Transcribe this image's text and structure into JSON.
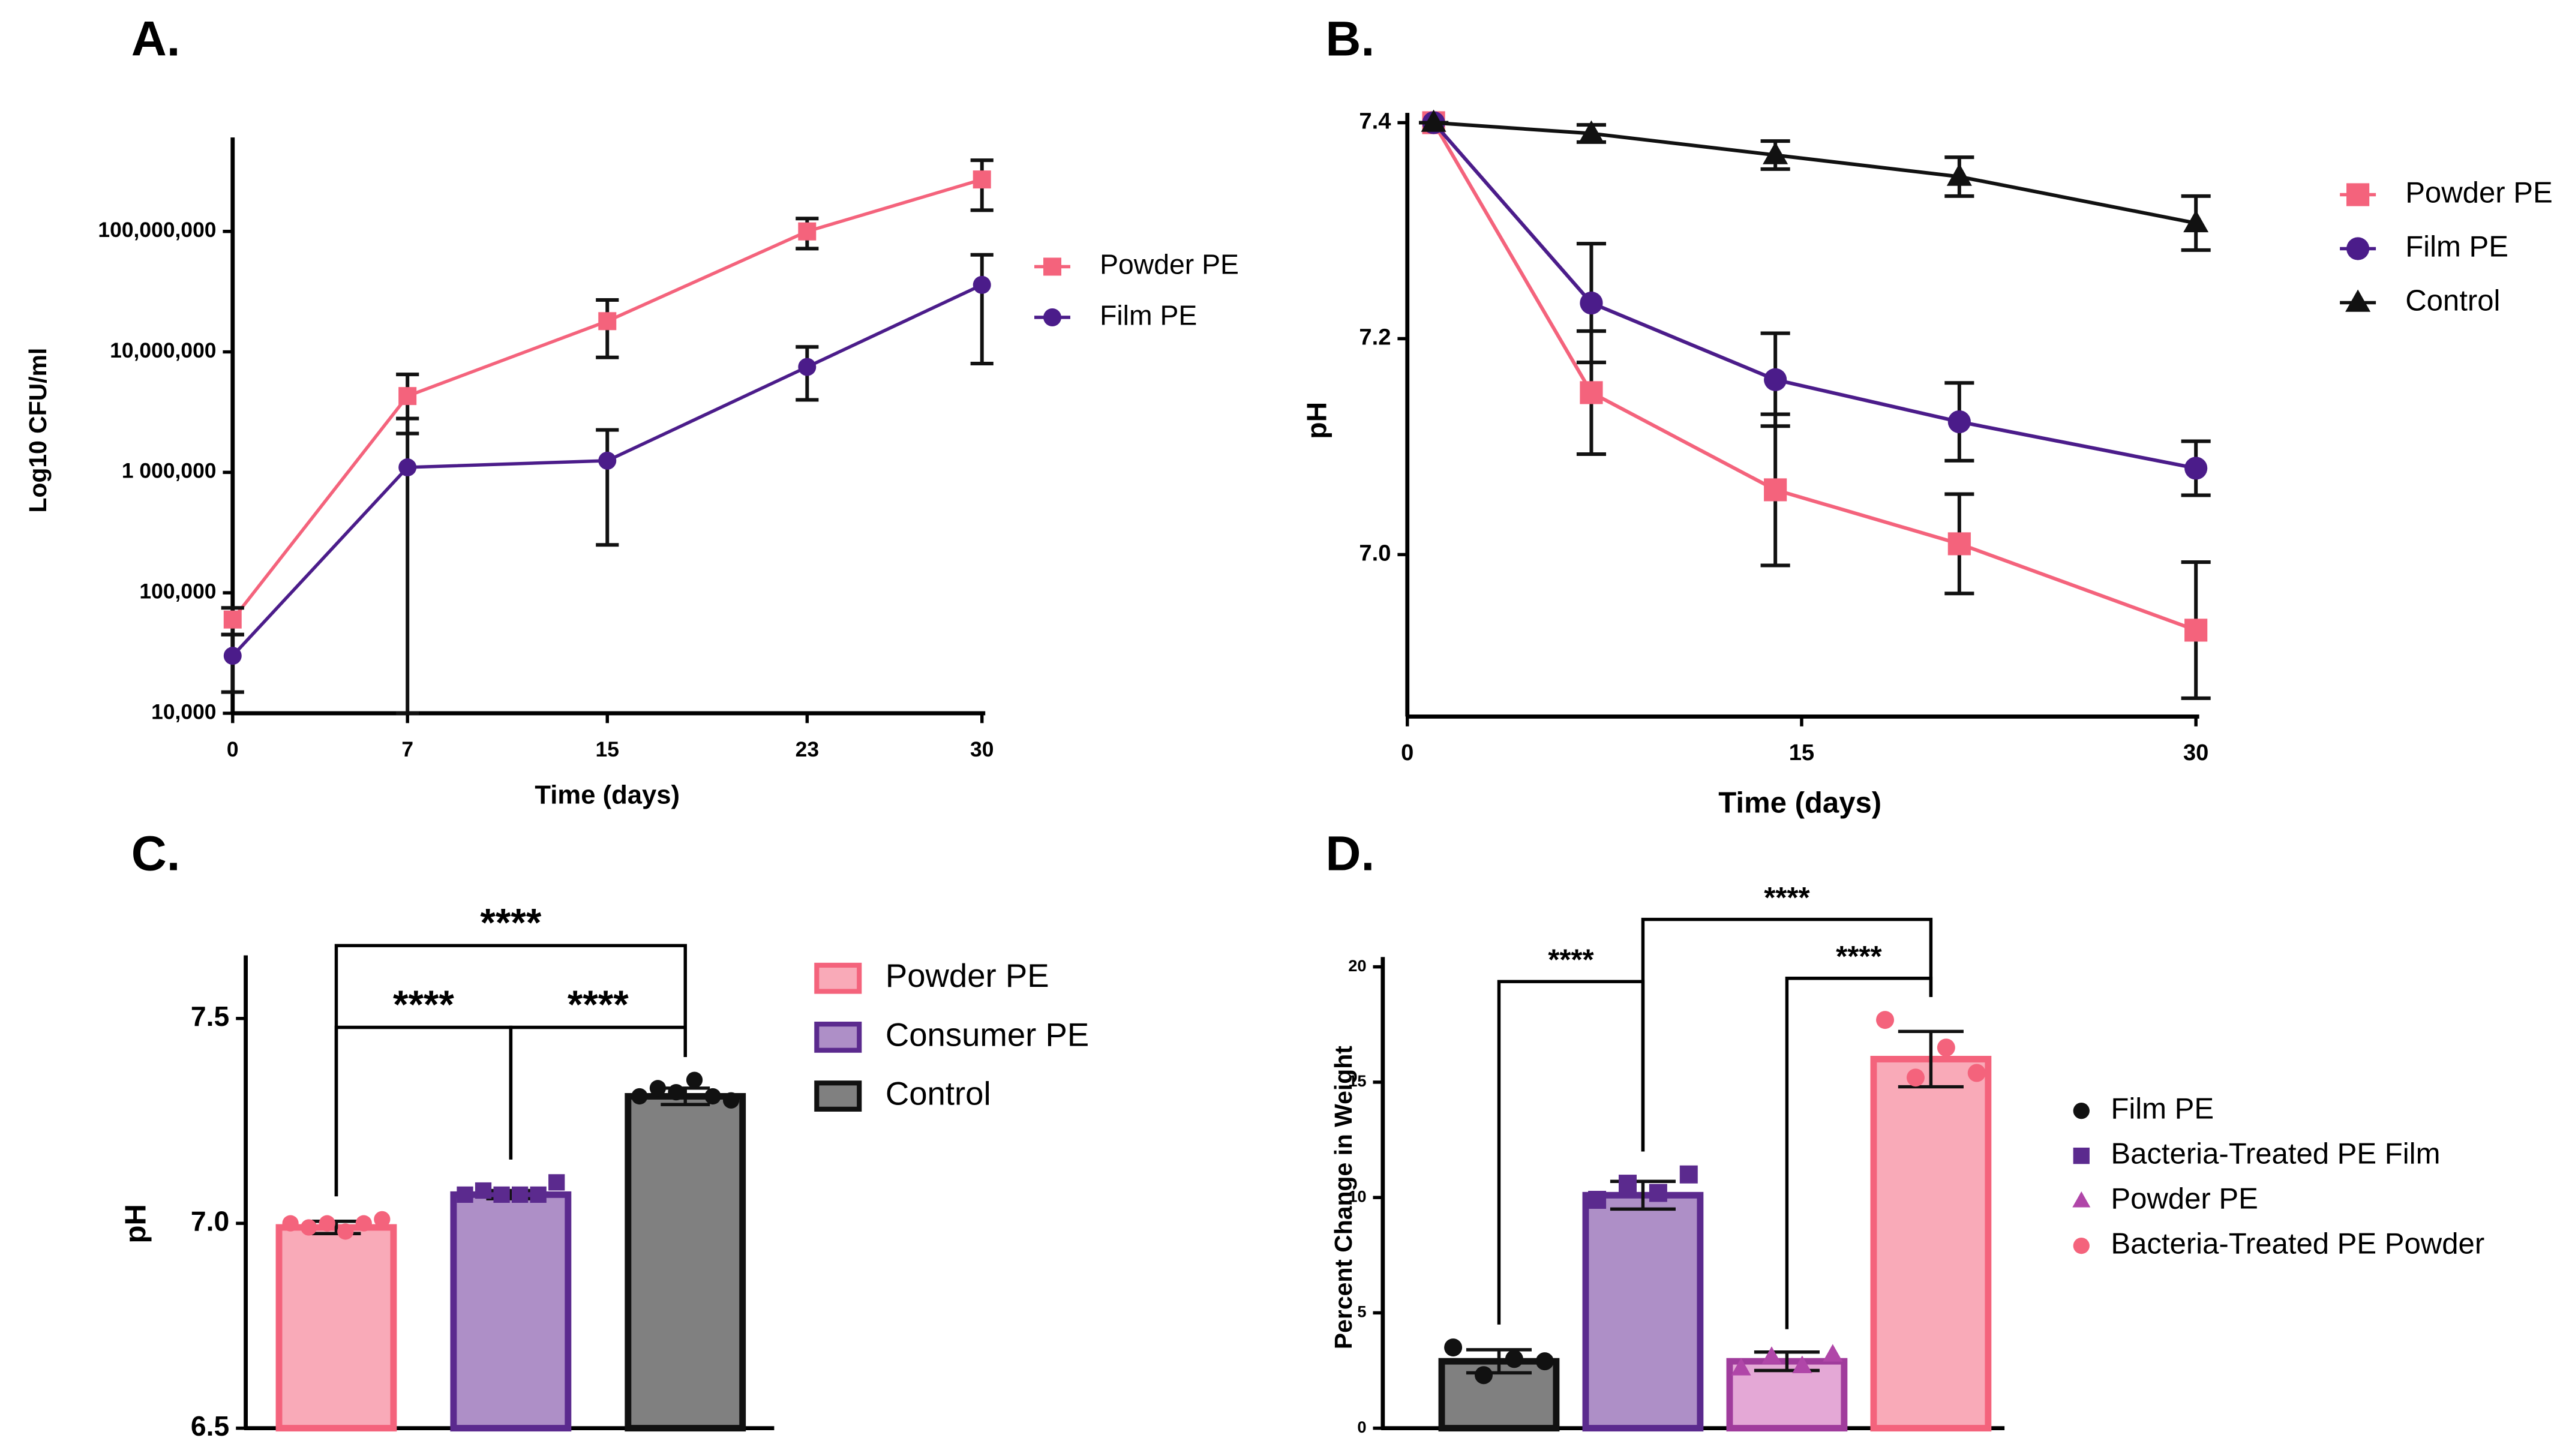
{
  "chart_data": [
    {
      "label": "A.",
      "type": "line",
      "log_y": true,
      "x_label": "Time (days)",
      "y_label": "Log10 CFU/ml",
      "x": [
        0,
        7,
        15,
        23,
        30
      ],
      "xlim": [
        0,
        30
      ],
      "xticks": [
        0,
        7,
        15,
        23,
        30
      ],
      "ylim": [
        10000,
        500000000
      ],
      "yticks": [
        {
          "value": 10000,
          "label": "10,000"
        },
        {
          "value": 100000,
          "label": "100,000"
        },
        {
          "value": 1000000,
          "label": "1 000,000"
        },
        {
          "value": 10000000,
          "label": "10,000,000"
        },
        {
          "value": 100000000,
          "label": "100,000,000"
        }
      ],
      "series": [
        {
          "name": "Powder PE",
          "color": "#f4637c",
          "marker": "square",
          "values": [
            60000,
            4300000,
            18000000,
            100000000,
            270000000
          ],
          "errors": [
            15000,
            2200000,
            9000000,
            28000000,
            120000000
          ]
        },
        {
          "name": "Film PE",
          "color": "#4b1c8a",
          "marker": "circle",
          "values": [
            30000,
            1100000,
            1250000,
            7500000,
            36000000
          ],
          "errors": [
            15000,
            1700000,
            1000000,
            3500000,
            28000000
          ]
        }
      ]
    },
    {
      "label": "B.",
      "type": "line",
      "log_y": false,
      "x_label": "Time (days)",
      "y_label": "pH",
      "x": [
        1,
        7,
        14,
        21,
        30
      ],
      "xlim": [
        0,
        30
      ],
      "xticks": [
        0,
        15,
        30
      ],
      "ylim": [
        6.85,
        7.4
      ],
      "yticks": [
        {
          "value": 7,
          "label": "7.0"
        },
        7.2,
        7.4
      ],
      "series": [
        {
          "name": "Powder PE",
          "color": "#f4637c",
          "marker": "square",
          "values": [
            7.4,
            7.15,
            7.06,
            7.01,
            6.93
          ],
          "errors": [
            0,
            0.057,
            0.07,
            0.046,
            0.063
          ]
        },
        {
          "name": "Film PE",
          "color": "#4b1c8a",
          "marker": "circle",
          "values": [
            7.4,
            7.233,
            7.162,
            7.123,
            7.08
          ],
          "errors": [
            0,
            0.055,
            0.043,
            0.036,
            0.025
          ]
        },
        {
          "name": "Control",
          "color": "#111111",
          "marker": "triangle",
          "values": [
            7.4,
            7.39,
            7.37,
            7.35,
            7.307
          ],
          "errors": [
            0,
            0.008,
            0.013,
            0.018,
            0.025
          ]
        }
      ]
    },
    {
      "label": "C.",
      "type": "bar",
      "y_label": "pH",
      "legend_style": "swatch",
      "categories": [
        "Powder PE",
        "Consumer PE",
        "Control"
      ],
      "values": [
        6.99,
        7.07,
        7.31
      ],
      "errors": [
        0.015,
        0.01,
        0.02
      ],
      "fills": [
        "#f9aab8",
        "#ae8fc7",
        "#808080"
      ],
      "strokes": [
        "#f4637c",
        "#5b2a8e",
        "#111111"
      ],
      "point_colors": [
        "#f4637c",
        "#5b2a8e",
        "#111111"
      ],
      "point_markers": [
        "circle",
        "square",
        "circle"
      ],
      "points": [
        [
          7.0,
          6.99,
          7.0,
          6.98,
          7.0,
          7.01
        ],
        [
          7.07,
          7.08,
          7.07,
          7.07,
          7.07,
          7.1
        ],
        [
          7.31,
          7.33,
          7.32,
          7.35,
          7.31,
          7.3
        ]
      ],
      "ylim": [
        6.5,
        7.63
      ],
      "yticks": [
        6.5,
        {
          "value": 7,
          "label": "7.0"
        },
        7.5
      ],
      "annotations": [
        "****",
        "****",
        "****"
      ]
    },
    {
      "label": "D.",
      "type": "bar",
      "y_label": "Percent Change in Weight",
      "legend_style": "marker",
      "categories": [
        "Film PE",
        "Bacteria-Treated PE Film",
        "Powder PE",
        "Bacteria-Treated PE Powder"
      ],
      "values": [
        2.9,
        10.1,
        2.9,
        16.0
      ],
      "errors": [
        0.5,
        0.6,
        0.4,
        1.2
      ],
      "fills": [
        "#808080",
        "#ae8fc7",
        "#e4a8d6",
        "#f9aab8"
      ],
      "strokes": [
        "#111111",
        "#5b2a8e",
        "#a03c9c",
        "#f4637c"
      ],
      "point_colors": [
        "#111111",
        "#5b2a8e",
        "#b046a8",
        "#f4637c"
      ],
      "point_markers": [
        "circle",
        "square",
        "triangle",
        "circle"
      ],
      "points": [
        [
          3.5,
          2.3,
          3.0,
          2.9
        ],
        [
          9.9,
          10.6,
          10.2,
          11.0
        ],
        [
          2.6,
          3.1,
          2.7,
          3.2
        ],
        [
          17.7,
          15.2,
          16.5,
          15.4
        ]
      ],
      "ylim": [
        0,
        20
      ],
      "yticks": [
        0,
        5,
        10,
        15,
        20
      ],
      "annotations": [
        "****",
        "****",
        "****"
      ]
    }
  ]
}
